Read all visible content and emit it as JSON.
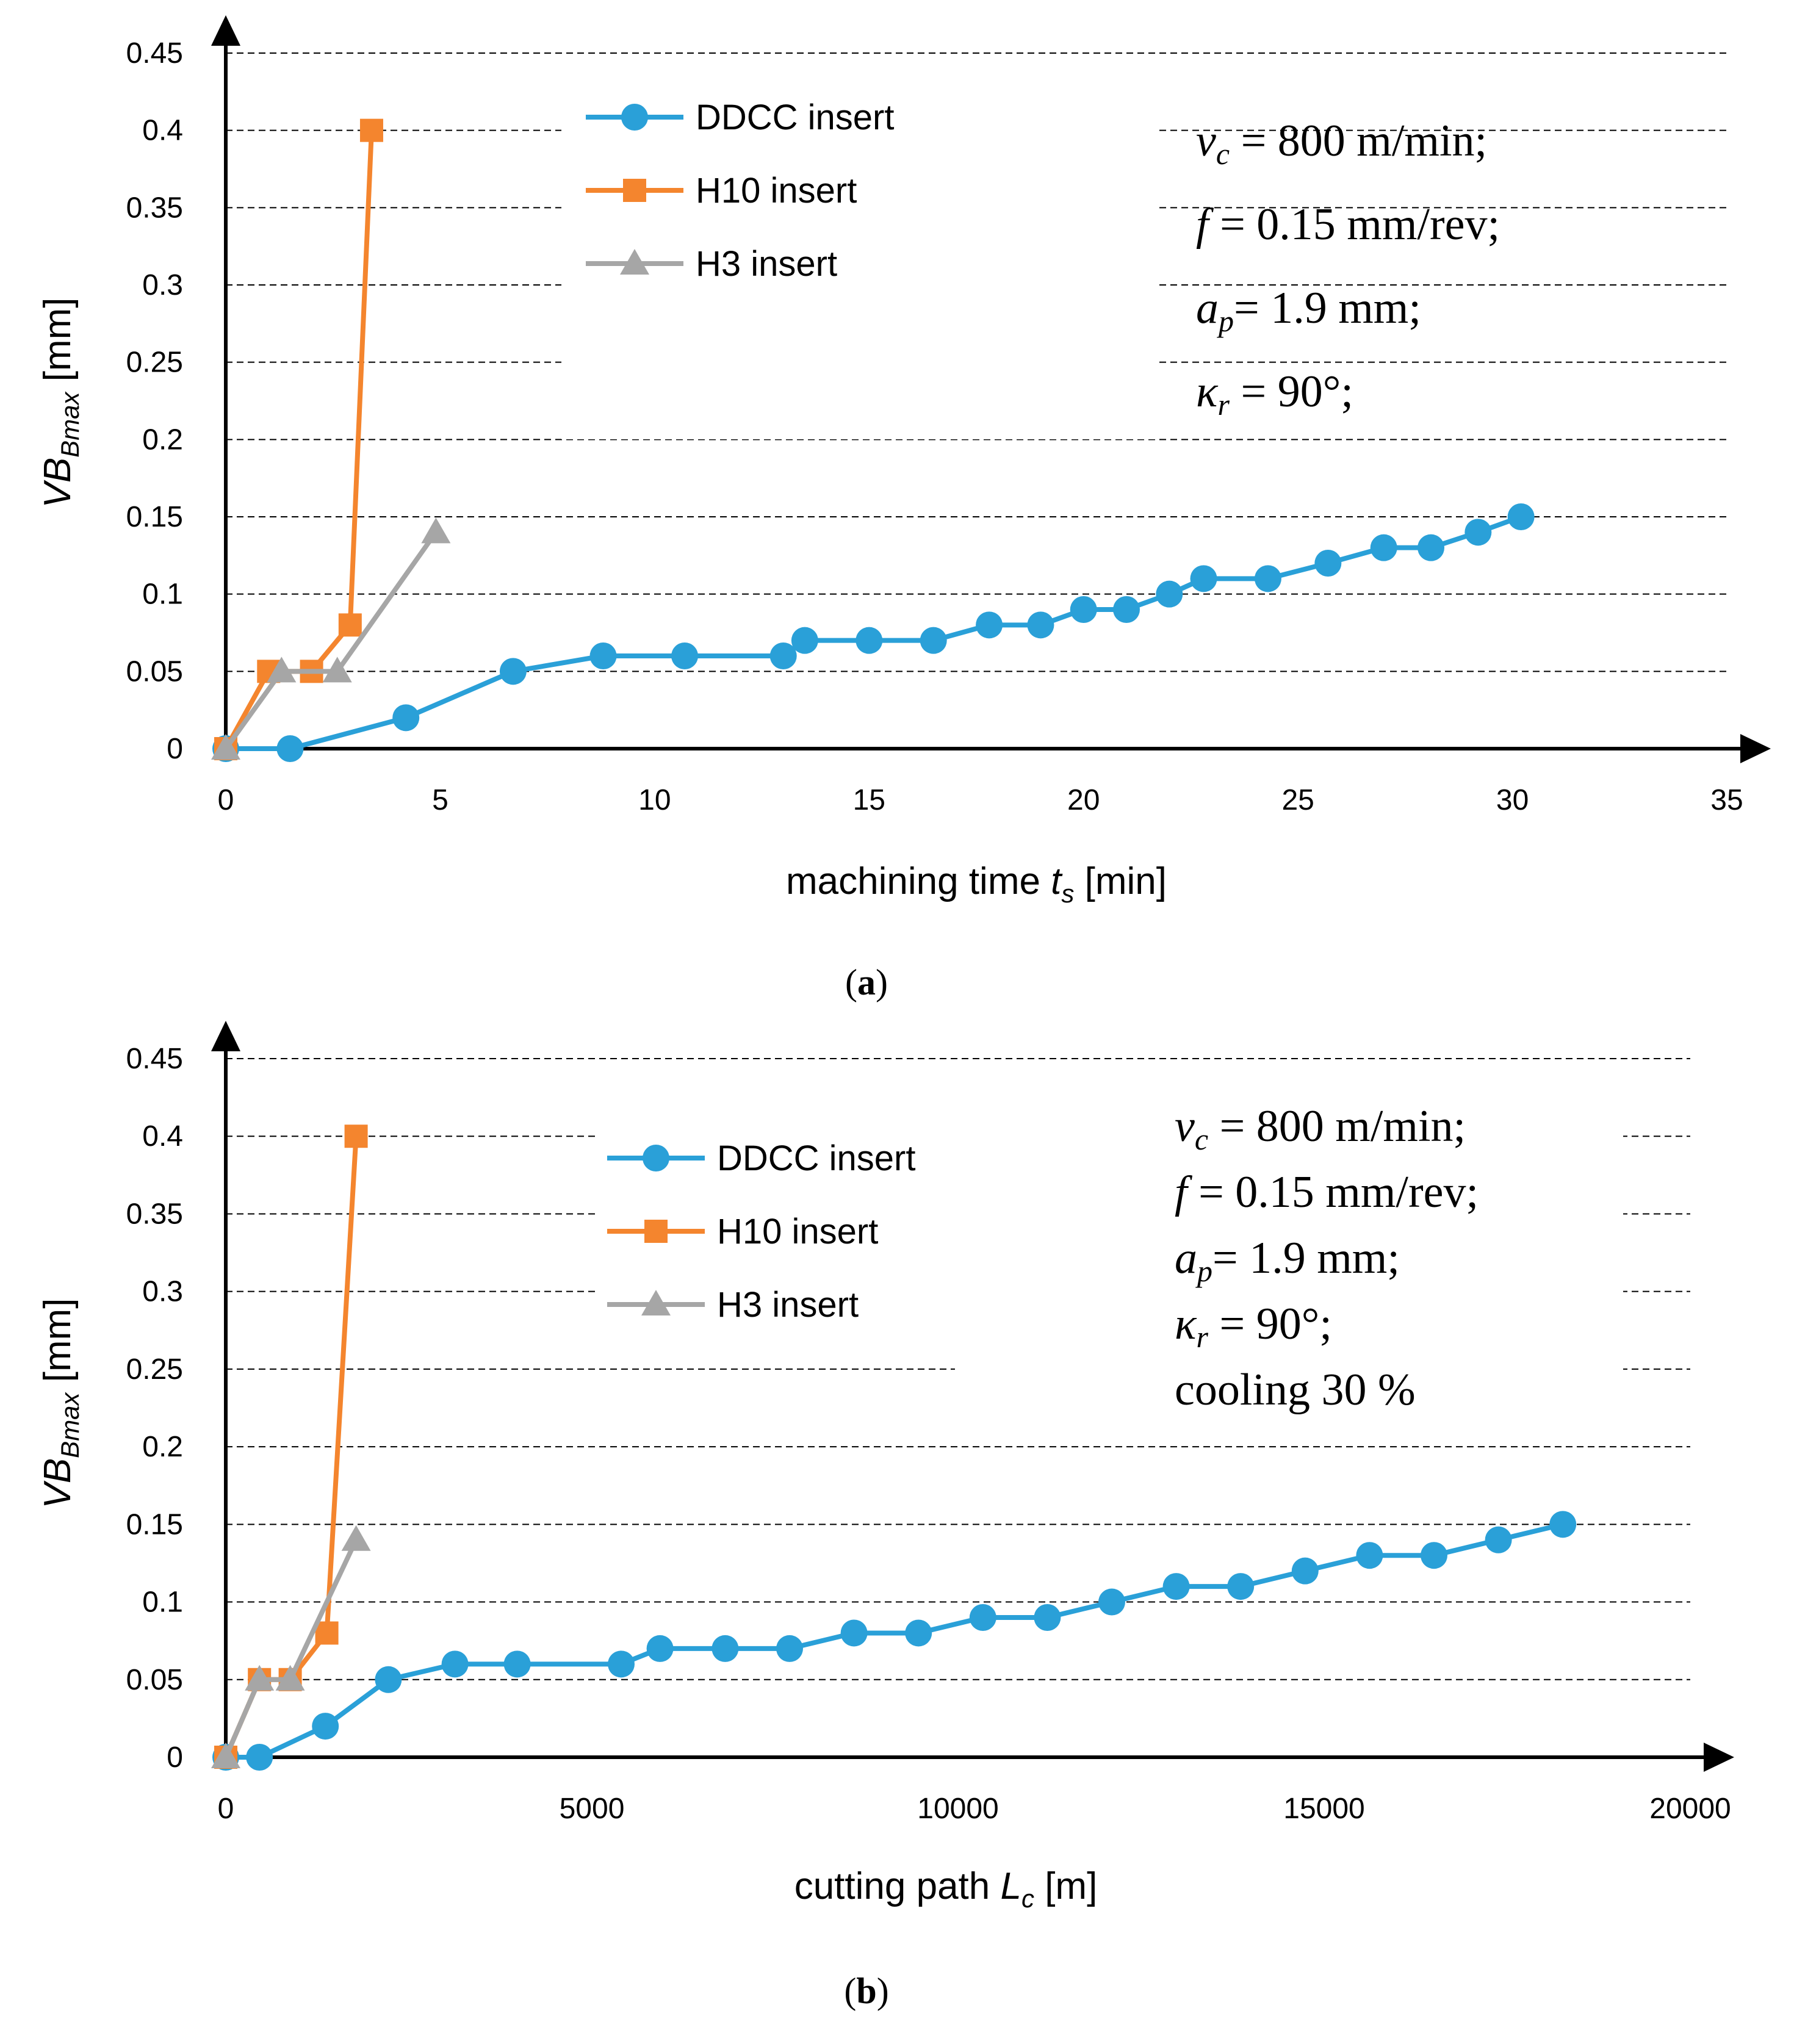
{
  "colors": {
    "ddcc": "#2aa0d8",
    "h10": "#f4852e",
    "h3": "#a6a6a6"
  },
  "chart_data": [
    {
      "type": "line",
      "id": "a",
      "caption": {
        "paren_open": "(",
        "letter": "a",
        "paren_close": ")"
      },
      "xlabel": {
        "main": "machining time ",
        "var": "t",
        "sub": "s",
        "unit": " [min]"
      },
      "ylabel": {
        "var": "VB",
        "sub": "Bmax",
        "unit": " [mm]"
      },
      "xlim": [
        0,
        35
      ],
      "ylim": [
        0,
        0.45
      ],
      "xticks": [
        0,
        5,
        10,
        15,
        20,
        25,
        30,
        35
      ],
      "xtick_labels": [
        "0",
        "5",
        "10",
        "15",
        "20",
        "25",
        "30",
        "35"
      ],
      "yticks": [
        0,
        0.05,
        0.1,
        0.15,
        0.2,
        0.25,
        0.3,
        0.35,
        0.4,
        0.45
      ],
      "ytick_labels": [
        "0",
        "0.05",
        "0.1",
        "0.15",
        "0.2",
        "0.25",
        "0.3",
        "0.35",
        "0.4",
        "0.45"
      ],
      "grid": true,
      "legend_position": "top-left",
      "series": [
        {
          "name": "DDCC insert",
          "marker": "circle",
          "color_key": "ddcc",
          "x": [
            0,
            1.5,
            4.2,
            6.7,
            8.8,
            10.7,
            13,
            13.5,
            15,
            16.5,
            17.8,
            19,
            20,
            21,
            22,
            22.8,
            24.3,
            25.7,
            27,
            28.1,
            29.2,
            30.2
          ],
          "y": [
            0,
            0,
            0.02,
            0.05,
            0.06,
            0.06,
            0.06,
            0.07,
            0.07,
            0.07,
            0.08,
            0.08,
            0.09,
            0.09,
            0.1,
            0.11,
            0.11,
            0.12,
            0.13,
            0.13,
            0.14,
            0.15
          ]
        },
        {
          "name": "H10 insert",
          "marker": "square",
          "color_key": "h10",
          "x": [
            0,
            1,
            2,
            2.9,
            3.4
          ],
          "y": [
            0,
            0.05,
            0.05,
            0.08,
            0.4
          ]
        },
        {
          "name": "H3 insert",
          "marker": "triangle",
          "color_key": "h3",
          "x": [
            0,
            1.3,
            2.6,
            4.9
          ],
          "y": [
            0,
            0.05,
            0.05,
            0.14
          ]
        }
      ],
      "conditions": [
        {
          "var": "v",
          "sub": "c",
          "rest": " = 800 m/min;"
        },
        {
          "var": "f",
          "sub": "",
          "rest": " = 0.15 mm/rev;"
        },
        {
          "var": "a",
          "sub": "p",
          "rest": "= 1.9 mm;"
        },
        {
          "var": "κ",
          "sub": "r",
          "rest": " = 90°;"
        }
      ]
    },
    {
      "type": "line",
      "id": "b",
      "caption": {
        "paren_open": "(",
        "letter": "b",
        "paren_close": ")"
      },
      "xlabel": {
        "main": "cutting path ",
        "var": "L",
        "sub": "c",
        "unit": " [m]"
      },
      "ylabel": {
        "var": "VB",
        "sub": "Bmax",
        "unit": " [mm]"
      },
      "xlim": [
        0,
        20000
      ],
      "ylim": [
        0,
        0.45
      ],
      "xticks": [
        0,
        5000,
        10000,
        15000,
        20000
      ],
      "xtick_labels": [
        "0",
        "5000",
        "10000",
        "15000",
        "20000"
      ],
      "yticks": [
        0,
        0.05,
        0.1,
        0.15,
        0.2,
        0.25,
        0.3,
        0.35,
        0.4,
        0.45
      ],
      "ytick_labels": [
        "0",
        "0.05",
        "0.1",
        "0.15",
        "0.2",
        "0.25",
        "0.3",
        "0.35",
        "0.4",
        "0.45"
      ],
      "grid": true,
      "legend_position": "top-left",
      "series": [
        {
          "name": "DDCC insert",
          "marker": "circle",
          "color_key": "ddcc",
          "x": [
            0,
            460,
            1360,
            2220,
            3130,
            3980,
            5400,
            5930,
            6820,
            7700,
            8580,
            9460,
            10340,
            11220,
            12100,
            12980,
            13860,
            14740,
            15620,
            16500,
            17380,
            18260
          ],
          "y": [
            0,
            0,
            0.02,
            0.05,
            0.06,
            0.06,
            0.06,
            0.07,
            0.07,
            0.07,
            0.08,
            0.08,
            0.09,
            0.09,
            0.1,
            0.11,
            0.11,
            0.12,
            0.13,
            0.13,
            0.14,
            0.15
          ]
        },
        {
          "name": "H10 insert",
          "marker": "square",
          "color_key": "h10",
          "x": [
            0,
            460,
            880,
            1380,
            1780
          ],
          "y": [
            0,
            0.05,
            0.05,
            0.08,
            0.4
          ]
        },
        {
          "name": "H3 insert",
          "marker": "triangle",
          "color_key": "h3",
          "x": [
            0,
            460,
            880,
            1780
          ],
          "y": [
            0,
            0.05,
            0.05,
            0.14
          ]
        }
      ],
      "conditions": [
        {
          "var": "v",
          "sub": "c",
          "rest": " = 800 m/min;"
        },
        {
          "var": "f",
          "sub": "",
          "rest": " = 0.15 mm/rev;"
        },
        {
          "var": "a",
          "sub": "p",
          "rest": "= 1.9 mm;"
        },
        {
          "var": "κ",
          "sub": "r",
          "rest": " = 90°;"
        },
        {
          "var": "",
          "sub": "",
          "rest": "cooling 30 %"
        }
      ]
    }
  ]
}
